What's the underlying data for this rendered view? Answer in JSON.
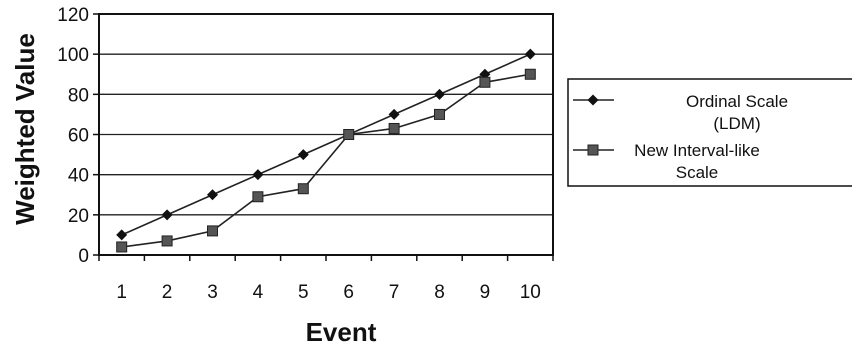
{
  "chart_data": {
    "type": "line",
    "title": "",
    "xlabel": "Event",
    "ylabel": "Weighted Value",
    "categories": [
      "1",
      "2",
      "3",
      "4",
      "5",
      "6",
      "7",
      "8",
      "9",
      "10"
    ],
    "ylim": [
      0,
      120
    ],
    "yticks": [
      "0",
      "20",
      "40",
      "60",
      "80",
      "100",
      "120"
    ],
    "grid": "horizontal",
    "legend_position": "right",
    "series": [
      {
        "name": "Ordinal Scale (LDM)",
        "legend_lines": [
          "Ordinal Scale",
          "(LDM)"
        ],
        "marker": "diamond",
        "values": [
          10,
          20,
          30,
          40,
          50,
          60,
          70,
          80,
          90,
          100
        ]
      },
      {
        "name": "New Interval-like Scale",
        "legend_lines": [
          "New Interval-like",
          "Scale"
        ],
        "marker": "square",
        "values": [
          4,
          7,
          12,
          29,
          33,
          60,
          63,
          70,
          86,
          90
        ]
      }
    ]
  }
}
